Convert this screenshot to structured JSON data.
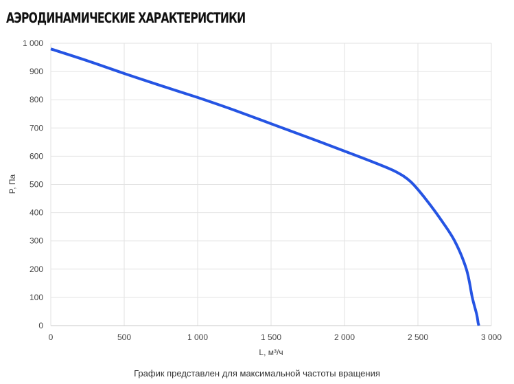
{
  "title": "АЭРОДИНАМИЧЕСКИЕ ХАРАКТЕРИСТИКИ",
  "footnote": "График представлен для максимальной частоты вращения",
  "chart_data": {
    "type": "line",
    "xlabel": "L, м³/ч",
    "ylabel": "P, Па",
    "xlim": [
      0,
      3000
    ],
    "ylim": [
      0,
      1000
    ],
    "xticks": [
      {
        "value": 0,
        "label": "0"
      },
      {
        "value": 500,
        "label": "500"
      },
      {
        "value": 1000,
        "label": "1 000"
      },
      {
        "value": 1500,
        "label": "1 500"
      },
      {
        "value": 2000,
        "label": "2 000"
      },
      {
        "value": 2500,
        "label": "2 500"
      },
      {
        "value": 3000,
        "label": "3 000"
      }
    ],
    "yticks": [
      {
        "value": 0,
        "label": "0"
      },
      {
        "value": 100,
        "label": "100"
      },
      {
        "value": 200,
        "label": "200"
      },
      {
        "value": 300,
        "label": "300"
      },
      {
        "value": 400,
        "label": "400"
      },
      {
        "value": 500,
        "label": "500"
      },
      {
        "value": 600,
        "label": "600"
      },
      {
        "value": 700,
        "label": "700"
      },
      {
        "value": 800,
        "label": "800"
      },
      {
        "value": 900,
        "label": "900"
      },
      {
        "value": 1000,
        "label": "1 000"
      }
    ],
    "grid": true,
    "series": [
      {
        "color": "#2554e3",
        "x": [
          0,
          250,
          500,
          750,
          1000,
          1250,
          1500,
          1750,
          2000,
          2200,
          2350,
          2450,
          2550,
          2650,
          2750,
          2830,
          2870,
          2900,
          2910,
          2915
        ],
        "y": [
          980,
          938,
          893,
          850,
          808,
          763,
          715,
          667,
          618,
          578,
          545,
          510,
          450,
          380,
          300,
          200,
          100,
          40,
          10,
          0
        ]
      }
    ]
  }
}
